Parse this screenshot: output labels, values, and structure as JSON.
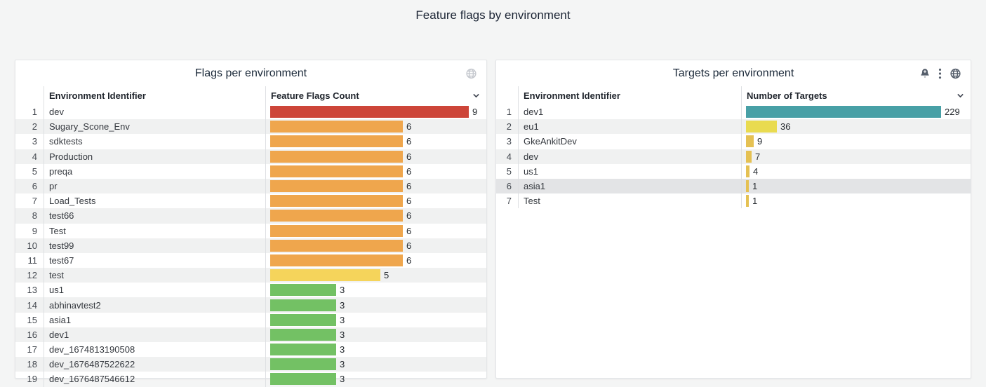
{
  "page_title": "Feature flags by environment",
  "colors": {
    "page_background": "#f4f5f5",
    "panel_background": "#ffffff",
    "row_stripe": "#f0f1f1",
    "row_highlight": "#e3e4e6",
    "bar_red": "#cd4539",
    "bar_orange": "#efa64d",
    "bar_yellow": "#f5d45b",
    "bar_green": "#73c164",
    "bar_teal": "#48a0a6",
    "bar_lemon": "#e9db50",
    "bar_amber": "#e5c153"
  },
  "chart_data": [
    {
      "type": "table",
      "title": "Flags per environment",
      "header_icons": [
        "globe"
      ],
      "column_menu_icon": "chevron-down",
      "columns": [
        "Environment Identifier",
        "Feature Flags Count"
      ],
      "axis_max": 9,
      "rows": [
        {
          "rank": 1,
          "env": "dev",
          "value": 9,
          "color": "#cd4539"
        },
        {
          "rank": 2,
          "env": "Sugary_Scone_Env",
          "value": 6,
          "color": "#efa64d"
        },
        {
          "rank": 3,
          "env": "sdktests",
          "value": 6,
          "color": "#efa64d"
        },
        {
          "rank": 4,
          "env": "Production",
          "value": 6,
          "color": "#efa64d"
        },
        {
          "rank": 5,
          "env": "preqa",
          "value": 6,
          "color": "#efa64d"
        },
        {
          "rank": 6,
          "env": "pr",
          "value": 6,
          "color": "#efa64d"
        },
        {
          "rank": 7,
          "env": "Load_Tests",
          "value": 6,
          "color": "#efa64d"
        },
        {
          "rank": 8,
          "env": "test66",
          "value": 6,
          "color": "#efa64d"
        },
        {
          "rank": 9,
          "env": "Test",
          "value": 6,
          "color": "#efa64d"
        },
        {
          "rank": 10,
          "env": "test99",
          "value": 6,
          "color": "#efa64d"
        },
        {
          "rank": 11,
          "env": "test67",
          "value": 6,
          "color": "#efa64d"
        },
        {
          "rank": 12,
          "env": "test",
          "value": 5,
          "color": "#f5d45b"
        },
        {
          "rank": 13,
          "env": "us1",
          "value": 3,
          "color": "#73c164"
        },
        {
          "rank": 14,
          "env": "abhinavtest2",
          "value": 3,
          "color": "#73c164"
        },
        {
          "rank": 15,
          "env": "asia1",
          "value": 3,
          "color": "#73c164"
        },
        {
          "rank": 16,
          "env": "dev1",
          "value": 3,
          "color": "#73c164"
        },
        {
          "rank": 17,
          "env": "dev_1674813190508",
          "value": 3,
          "color": "#73c164"
        },
        {
          "rank": 18,
          "env": "dev_1676487522622",
          "value": 3,
          "color": "#73c164"
        },
        {
          "rank": 19,
          "env": "dev_1676487546612",
          "value": 3,
          "color": "#73c164"
        }
      ]
    },
    {
      "type": "table",
      "title": "Targets per environment",
      "header_icons": [
        "bell-plus",
        "kebab-menu",
        "globe"
      ],
      "column_menu_icon": "chevron-down",
      "columns": [
        "Environment Identifier",
        "Number of Targets"
      ],
      "axis_max": 229,
      "highlighted_row_rank": 6,
      "rows": [
        {
          "rank": 1,
          "env": "dev1",
          "value": 229,
          "color": "#48a0a6"
        },
        {
          "rank": 2,
          "env": "eu1",
          "value": 36,
          "color": "#e9db50"
        },
        {
          "rank": 3,
          "env": "GkeAnkitDev",
          "value": 9,
          "color": "#e5c153"
        },
        {
          "rank": 4,
          "env": "dev",
          "value": 7,
          "color": "#e5c153"
        },
        {
          "rank": 5,
          "env": "us1",
          "value": 4,
          "color": "#e5c153"
        },
        {
          "rank": 6,
          "env": "asia1",
          "value": 1,
          "color": "#e5c153"
        },
        {
          "rank": 7,
          "env": "Test",
          "value": 1,
          "color": "#e5c153"
        }
      ]
    }
  ]
}
